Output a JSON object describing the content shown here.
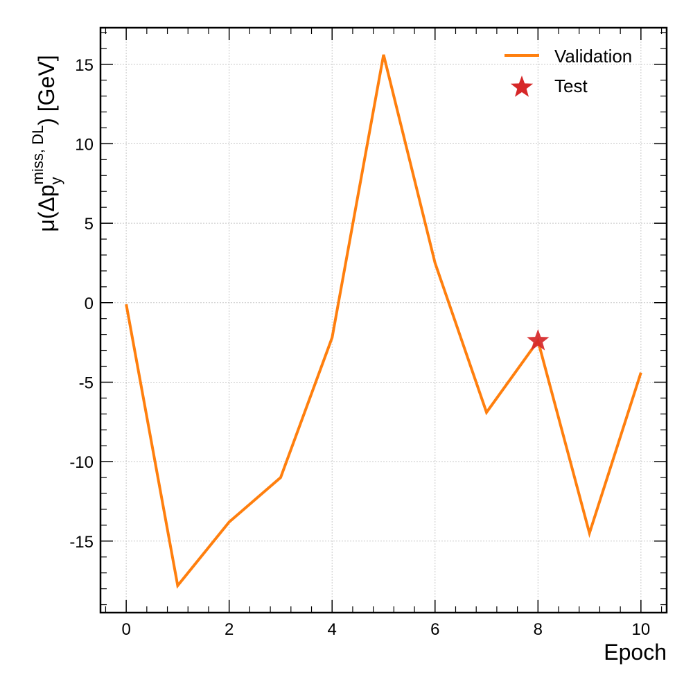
{
  "chart_data": {
    "type": "line",
    "xlabel": "Epoch",
    "ylabel": {
      "prefix": "μ(Δp",
      "subscript": "y",
      "superscript": "miss, DL",
      "suffix": ") [GeV]"
    },
    "xlim": [
      -0.5,
      10.5
    ],
    "ylim": [
      -19.5,
      17.3
    ],
    "x_ticks": [
      0,
      2,
      4,
      6,
      8,
      10
    ],
    "y_ticks": [
      -15,
      -10,
      -5,
      0,
      5,
      10,
      15
    ],
    "grid": true,
    "legend_position": "top-right",
    "series": [
      {
        "name": "Validation",
        "kind": "line",
        "color": "#ff7f0e",
        "x": [
          0,
          1,
          2,
          3,
          4,
          5,
          6,
          7,
          8,
          9,
          10
        ],
        "y": [
          -0.1,
          -17.8,
          -13.8,
          -11.0,
          -2.2,
          15.6,
          2.5,
          -6.9,
          -2.4,
          -14.5,
          -4.4
        ]
      },
      {
        "name": "Test",
        "kind": "scatter",
        "marker": "star",
        "color": "#d62728",
        "x": [
          8
        ],
        "y": [
          -2.4
        ]
      }
    ]
  }
}
